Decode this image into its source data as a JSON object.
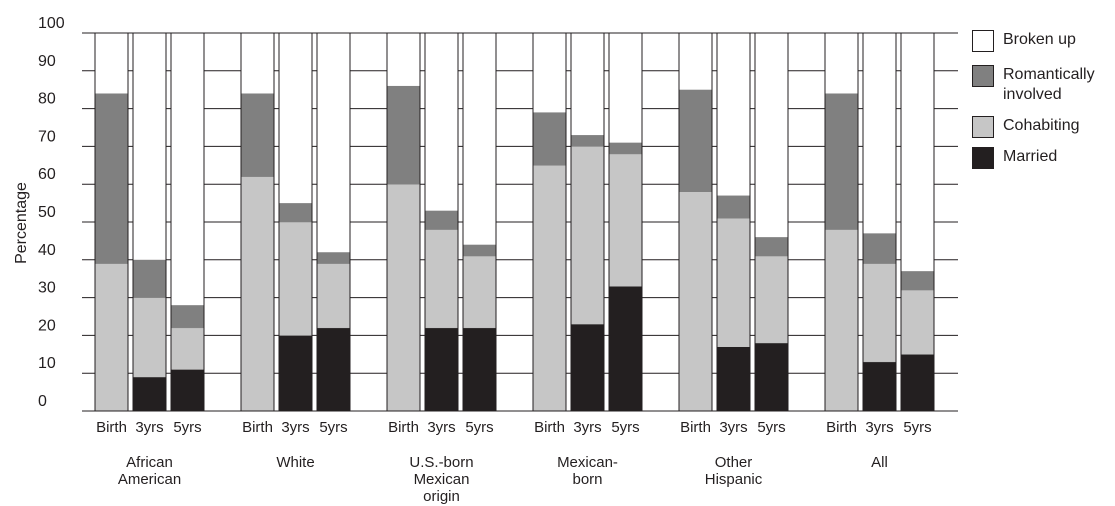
{
  "chart_data": {
    "type": "bar",
    "stacked": true,
    "ylabel": "Percentage",
    "ylim": [
      0,
      100
    ],
    "yticks": [
      0,
      10,
      20,
      30,
      40,
      50,
      60,
      70,
      80,
      90,
      100
    ],
    "grid": true,
    "legend_position": "right",
    "groups": [
      {
        "label": "African American",
        "label_lines": [
          "African",
          "American"
        ]
      },
      {
        "label": "White",
        "label_lines": [
          "White"
        ]
      },
      {
        "label": "U.S.-born Mexican origin",
        "label_lines": [
          "U.S.-born",
          "Mexican",
          "origin"
        ]
      },
      {
        "label": "Mexican-born",
        "label_lines": [
          "Mexican-",
          "born"
        ]
      },
      {
        "label": "Other Hispanic",
        "label_lines": [
          "Other",
          "Hispanic"
        ]
      },
      {
        "label": "All",
        "label_lines": [
          "All"
        ]
      }
    ],
    "subcategories": [
      "Birth",
      "3yrs",
      "5yrs"
    ],
    "series": [
      {
        "name": "Married",
        "color": "#231f20",
        "values": [
          [
            0,
            9,
            11
          ],
          [
            0,
            20,
            22
          ],
          [
            0,
            22,
            22
          ],
          [
            0,
            23,
            33
          ],
          [
            0,
            17,
            18
          ],
          [
            0,
            13,
            15
          ]
        ]
      },
      {
        "name": "Cohabiting",
        "color": "#c6c6c6",
        "values": [
          [
            39,
            21,
            11
          ],
          [
            62,
            30,
            17
          ],
          [
            60,
            26,
            19
          ],
          [
            65,
            47,
            35
          ],
          [
            58,
            34,
            23
          ],
          [
            48,
            26,
            17
          ]
        ]
      },
      {
        "name": "Romantically involved",
        "color": "#808080",
        "values": [
          [
            45,
            10,
            6
          ],
          [
            22,
            5,
            3
          ],
          [
            26,
            5,
            3
          ],
          [
            14,
            3,
            3
          ],
          [
            27,
            6,
            5
          ],
          [
            36,
            8,
            5
          ]
        ]
      },
      {
        "name": "Broken up",
        "color": "#ffffff",
        "values": [
          [
            16,
            60,
            72
          ],
          [
            16,
            45,
            58
          ],
          [
            14,
            47,
            56
          ],
          [
            21,
            27,
            29
          ],
          [
            15,
            43,
            54
          ],
          [
            16,
            53,
            63
          ]
        ]
      }
    ]
  },
  "legend": {
    "items": [
      {
        "label": "Broken up",
        "label_lines": [
          "Broken up"
        ],
        "color": "#ffffff"
      },
      {
        "label": "Romantically involved",
        "label_lines": [
          "Romantically",
          "involved"
        ],
        "color": "#808080"
      },
      {
        "label": "Cohabiting",
        "label_lines": [
          "Cohabiting"
        ],
        "color": "#c6c6c6"
      },
      {
        "label": "Married",
        "label_lines": [
          "Married"
        ],
        "color": "#231f20"
      }
    ]
  }
}
